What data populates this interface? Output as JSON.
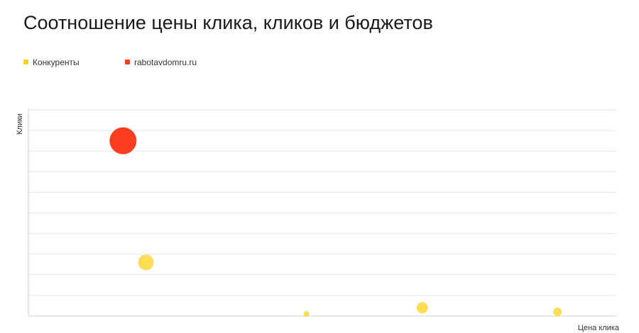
{
  "chart_data": {
    "type": "scatter",
    "title": "Соотношение цены клика, кликов и бюджетов",
    "xlabel": "Цена клика",
    "ylabel": "Клики",
    "xlim": [
      0,
      100
    ],
    "ylim": [
      0,
      100
    ],
    "grid": true,
    "legend_placement": "top-left",
    "series": [
      {
        "name": "Конкуренты",
        "color": "#FFD21F",
        "points": [
          {
            "x": 20.0,
            "y": 26,
            "size": 11
          },
          {
            "x": 47.3,
            "y": 1,
            "size": 4
          },
          {
            "x": 67.0,
            "y": 4,
            "size": 8
          },
          {
            "x": 90.0,
            "y": 2,
            "size": 6
          }
        ]
      },
      {
        "name": "rabotavdomru.ru",
        "color": "#FF3E21",
        "points": [
          {
            "x": 16.1,
            "y": 85,
            "size": 19
          }
        ]
      }
    ]
  }
}
